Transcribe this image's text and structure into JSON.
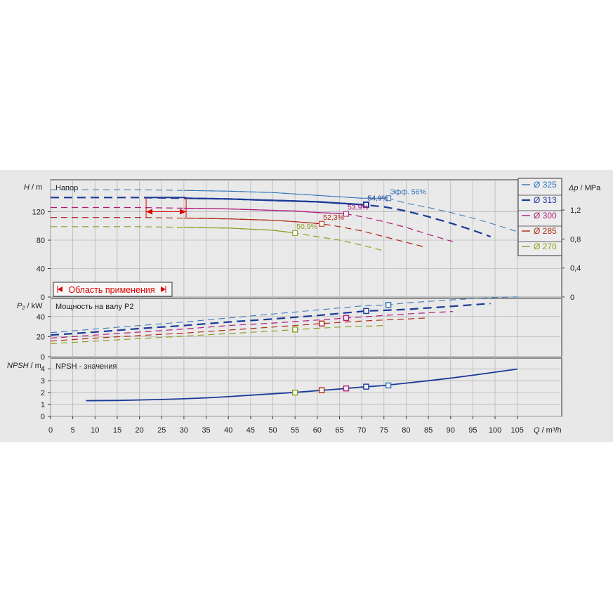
{
  "chart_data": {
    "type": "line",
    "x_axis": {
      "label_symbol": "Q",
      "label_unit": "/ m³/h",
      "ticks": [
        0,
        5,
        10,
        15,
        20,
        25,
        30,
        35,
        40,
        45,
        50,
        55,
        60,
        65,
        70,
        75,
        80,
        85,
        90,
        95,
        100,
        105
      ],
      "range": [
        0,
        115
      ]
    },
    "legend": {
      "placement": "top-right",
      "entries": [
        {
          "label": "Ø 325",
          "color": "#2a72b8"
        },
        {
          "label": "Ø 313",
          "color": "#1a3a98"
        },
        {
          "label": "Ø 300",
          "color": "#b0197a"
        },
        {
          "label": "Ø 285",
          "color": "#b02a14"
        },
        {
          "label": "Ø 270",
          "color": "#8ca020"
        }
      ]
    },
    "panels": [
      {
        "name": "head",
        "title": "Напор",
        "ylabel_symbol": "H",
        "ylabel_unit": "/ m",
        "y_ticks": [
          0,
          40,
          80,
          120
        ],
        "ylim": [
          0,
          165
        ],
        "right_axis": {
          "label_symbol": "Δp",
          "label_unit": "/ MPa",
          "ticks": [
            "0",
            "0,4",
            "0,8",
            "1,2"
          ],
          "tick_values": [
            0,
            40.8,
            81.6,
            122.4
          ]
        },
        "operating_range_label": "Область применения",
        "operating_range_q": [
          21.5,
          30.5
        ],
        "operating_range_h": [
          140,
          120
        ],
        "annotations": [
          {
            "text": "Эфф.  56%",
            "x": 76,
            "y": 139,
            "series": 0
          },
          {
            "text": "54,9%",
            "x": 71,
            "y": 130,
            "series": 1
          },
          {
            "text": "53,9%",
            "x": 66.5,
            "y": 117,
            "series": 2
          },
          {
            "text": "52,3%",
            "x": 61,
            "y": 103,
            "series": 3
          },
          {
            "text": "50,9%",
            "x": 55,
            "y": 90,
            "series": 4
          }
        ],
        "series": [
          {
            "name": "Ø 325",
            "x": [
              0,
              10,
              20,
              30,
              40,
              50,
              55,
              60,
              65,
              70,
              76,
              80,
              85,
              90,
              95,
              100,
              105
            ],
            "y": [
              151,
              151,
              151,
              150,
              149,
              147,
              145,
              143,
              141,
              139,
              139,
              132,
              126,
              119,
              111,
              102,
              92
            ]
          },
          {
            "name": "Ø 313",
            "x": [
              0,
              10,
              20,
              30,
              40,
              50,
              55,
              60,
              65,
              70,
              75,
              80,
              85,
              90,
              95,
              99
            ],
            "y": [
              140,
              140,
              140,
              139,
              138,
              136,
              135,
              134,
              132,
              130,
              127,
              121,
              113,
              104,
              94,
              85
            ]
          },
          {
            "name": "Ø 300",
            "x": [
              0,
              10,
              20,
              30,
              40,
              50,
              55,
              60,
              66.5,
              70,
              75,
              80,
              85,
              90.5
            ],
            "y": [
              126,
              126,
              126,
              125,
              124,
              122,
              121,
              119,
              117,
              113,
              106,
              98,
              88,
              78
            ]
          },
          {
            "name": "Ø 285",
            "x": [
              0,
              10,
              20,
              30,
              40,
              50,
              55,
              61,
              65,
              70,
              75,
              80,
              84.5
            ],
            "y": [
              112,
              112,
              112,
              111,
              110,
              108,
              106,
              103,
              99,
              93,
              85,
              77,
              70
            ]
          },
          {
            "name": "Ø 270",
            "x": [
              0,
              10,
              20,
              30,
              40,
              50,
              55,
              60,
              65,
              70,
              75
            ],
            "y": [
              99,
              99,
              99,
              98,
              97,
              94,
              90,
              85,
              80,
              73,
              65
            ]
          }
        ]
      },
      {
        "name": "power",
        "title": "Мощность на валу P2",
        "ylabel_symbol": "P₂",
        "ylabel_unit": "/ kW",
        "y_ticks": [
          0,
          20,
          40
        ],
        "ylim": [
          0,
          58
        ],
        "markers": [
          [
            76,
            51.5
          ],
          [
            71,
            45.5
          ],
          [
            66.5,
            38.5
          ],
          [
            61,
            33
          ],
          [
            55,
            27
          ]
        ],
        "series": [
          {
            "name": "Ø 325",
            "x": [
              0,
              10,
              20,
              30,
              40,
              50,
              60,
              70,
              76,
              80,
              90,
              100,
              105
            ],
            "y": [
              24,
              27.5,
              31,
              34.5,
              38.5,
              42.5,
              46.5,
              50.5,
              51.5,
              53.5,
              56.5,
              59,
              59.5
            ]
          },
          {
            "name": "Ø 313",
            "x": [
              0,
              10,
              20,
              30,
              40,
              50,
              60,
              71,
              80,
              90,
              99
            ],
            "y": [
              21.5,
              24.5,
              28,
              31,
              34.5,
              37.5,
              41,
              45.5,
              47,
              50,
              53
            ]
          },
          {
            "name": "Ø 300",
            "x": [
              0,
              10,
              20,
              30,
              40,
              50,
              60,
              66.5,
              80,
              90.5
            ],
            "y": [
              18.5,
              21.5,
              24.5,
              27.5,
              31,
              33.5,
              36.5,
              38.5,
              42.5,
              45
            ]
          },
          {
            "name": "Ø 285",
            "x": [
              0,
              10,
              20,
              30,
              40,
              50,
              61,
              70,
              80,
              84.5
            ],
            "y": [
              15.5,
              18.5,
              21,
              23.5,
              26.5,
              29.5,
              33,
              35.5,
              37.5,
              38.5
            ]
          },
          {
            "name": "Ø 270",
            "x": [
              0,
              10,
              20,
              30,
              40,
              50,
              55,
              65,
              75
            ],
            "y": [
              13,
              15.5,
              18,
              20.5,
              23,
              25.5,
              27,
              29.5,
              31
            ]
          }
        ]
      },
      {
        "name": "npsh",
        "title": "NPSH - значения",
        "ylabel_symbol": "NPSH",
        "ylabel_unit": "/ m",
        "y_ticks": [
          0,
          1,
          2,
          3,
          4
        ],
        "ylim": [
          0,
          4.9
        ],
        "markers": [
          [
            55,
            2.0
          ],
          [
            61,
            2.2
          ],
          [
            66.5,
            2.35
          ],
          [
            71,
            2.5
          ],
          [
            76,
            2.6
          ]
        ],
        "series": [
          {
            "name": "NPSH",
            "x": [
              8,
              15,
              20,
              25,
              30,
              35,
              40,
              45,
              50,
              55,
              60,
              65,
              70,
              75,
              80,
              85,
              90,
              95,
              100,
              105
            ],
            "y": [
              1.32,
              1.34,
              1.38,
              1.42,
              1.48,
              1.56,
              1.66,
              1.78,
              1.9,
              2.02,
              2.16,
              2.3,
              2.46,
              2.6,
              2.8,
              3.0,
              3.22,
              3.46,
              3.72,
              3.98
            ]
          }
        ]
      }
    ]
  }
}
